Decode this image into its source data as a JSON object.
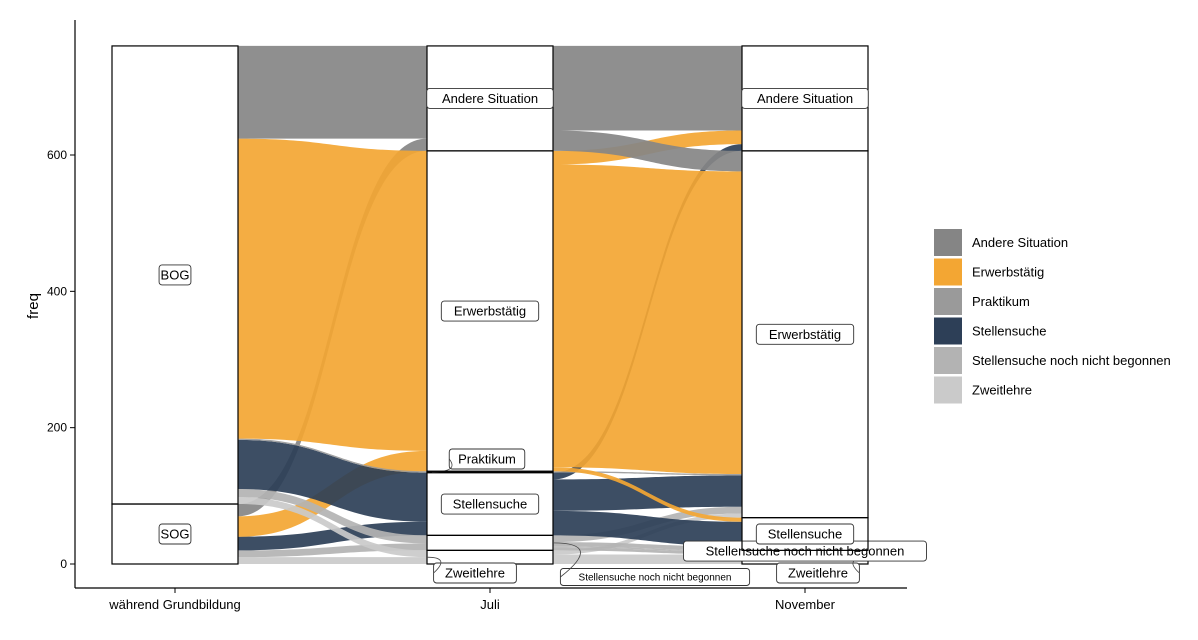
{
  "chart_data": {
    "type": "alluvial",
    "ylabel": "freq",
    "ylim": [
      0,
      760
    ],
    "yticks": [
      0,
      200,
      400,
      600
    ],
    "axes": [
      "während Grundbildung",
      "Juli",
      "November"
    ],
    "strata": [
      [
        {
          "label": "SOG",
          "value": 88
        },
        {
          "label": "BOG",
          "value": 672
        }
      ],
      [
        {
          "label": "Zweitlehre",
          "value": 20
        },
        {
          "label": "Stellensuche noch nicht begonnen",
          "value": 22
        },
        {
          "label": "Stellensuche",
          "value": 92
        },
        {
          "label": "Praktikum",
          "value": 2
        },
        {
          "label": "Erwerbstätig",
          "value": 470
        },
        {
          "label": "Andere Situation",
          "value": 154
        }
      ],
      [
        {
          "label": "Zweitlehre",
          "value": 18
        },
        {
          "label": "Stellensuche noch nicht begonnen",
          "value": 2
        },
        {
          "label": "Stellensuche",
          "value": 48
        },
        {
          "label": "Erwerbstätig",
          "value": 538
        },
        {
          "label": "Andere Situation",
          "value": 154
        }
      ]
    ],
    "flows1": [
      {
        "from": "SOG",
        "to": "Zweitlehre",
        "value": 10,
        "color": "Zweitlehre"
      },
      {
        "from": "SOG",
        "to": "Stellensuche noch nicht begonnen",
        "value": 10,
        "color": "Stellensuche noch nicht begonnen"
      },
      {
        "from": "SOG",
        "to": "Stellensuche",
        "value": 20,
        "color": "Stellensuche"
      },
      {
        "from": "SOG",
        "to": "Erwerbstätig",
        "value": 30,
        "color": "Erwerbstätig"
      },
      {
        "from": "SOG",
        "to": "Andere Situation",
        "value": 18,
        "color": "Andere Situation"
      },
      {
        "from": "BOG",
        "to": "Zweitlehre",
        "value": 10,
        "color": "Zweitlehre"
      },
      {
        "from": "BOG",
        "to": "Stellensuche noch nicht begonnen",
        "value": 12,
        "color": "Stellensuche noch nicht begonnen"
      },
      {
        "from": "BOG",
        "to": "Stellensuche",
        "value": 72,
        "color": "Stellensuche"
      },
      {
        "from": "BOG",
        "to": "Praktikum",
        "value": 2,
        "color": "Praktikum"
      },
      {
        "from": "BOG",
        "to": "Erwerbstätig",
        "value": 440,
        "color": "Erwerbstätig"
      },
      {
        "from": "BOG",
        "to": "Andere Situation",
        "value": 136,
        "color": "Andere Situation"
      }
    ],
    "flows2": [
      {
        "from": "Zweitlehre",
        "to": "Zweitlehre",
        "value": 14,
        "color": "Zweitlehre"
      },
      {
        "from": "Zweitlehre",
        "to": "Erwerbstätig",
        "value": 6,
        "color": "Zweitlehre"
      },
      {
        "from": "Stellensuche noch nicht begonnen",
        "to": "Zweitlehre",
        "value": 4,
        "color": "Stellensuche noch nicht begonnen"
      },
      {
        "from": "Stellensuche noch nicht begonnen",
        "to": "Stellensuche noch nicht begonnen",
        "value": 2,
        "color": "Stellensuche noch nicht begonnen"
      },
      {
        "from": "Stellensuche noch nicht begonnen",
        "to": "Stellensuche",
        "value": 6,
        "color": "Stellensuche noch nicht begonnen"
      },
      {
        "from": "Stellensuche noch nicht begonnen",
        "to": "Erwerbstätig",
        "value": 10,
        "color": "Stellensuche noch nicht begonnen"
      },
      {
        "from": "Stellensuche",
        "to": "Stellensuche",
        "value": 36,
        "color": "Stellensuche"
      },
      {
        "from": "Stellensuche",
        "to": "Erwerbstätig",
        "value": 46,
        "color": "Stellensuche"
      },
      {
        "from": "Stellensuche",
        "to": "Andere Situation",
        "value": 10,
        "color": "Stellensuche"
      },
      {
        "from": "Praktikum",
        "to": "Erwerbstätig",
        "value": 2,
        "color": "Praktikum"
      },
      {
        "from": "Erwerbstätig",
        "to": "Stellensuche",
        "value": 6,
        "color": "Erwerbstätig"
      },
      {
        "from": "Erwerbstätig",
        "to": "Erwerbstätig",
        "value": 444,
        "color": "Erwerbstätig"
      },
      {
        "from": "Erwerbstätig",
        "to": "Andere Situation",
        "value": 20,
        "color": "Erwerbstätig"
      },
      {
        "from": "Andere Situation",
        "to": "Erwerbstätig",
        "value": 30,
        "color": "Andere Situation"
      },
      {
        "from": "Andere Situation",
        "to": "Andere Situation",
        "value": 124,
        "color": "Andere Situation"
      }
    ],
    "legend": {
      "position": "right",
      "items": [
        {
          "label": "Andere Situation",
          "color": "#858585"
        },
        {
          "label": "Erwerbstätig",
          "color": "#f3a633"
        },
        {
          "label": "Praktikum",
          "color": "#9a9a9a"
        },
        {
          "label": "Stellensuche",
          "color": "#2d3f57"
        },
        {
          "label": "Stellensuche noch nicht begonnen",
          "color": "#b3b3b3"
        },
        {
          "label": "Zweitlehre",
          "color": "#cacaca"
        }
      ]
    },
    "grid": false
  }
}
